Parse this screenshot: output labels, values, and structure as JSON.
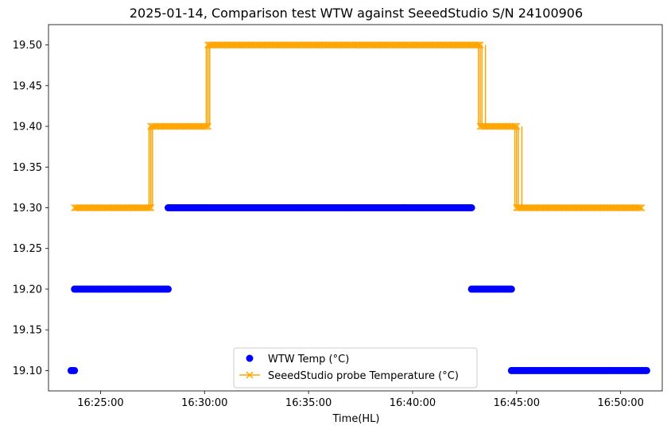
{
  "chart_data": {
    "type": "scatter",
    "title": "2025-01-14, Comparison test WTW against SeeedStudio S/N 24100906",
    "xlabel": "Time(HL)",
    "ylabel": "",
    "x_is_time": true,
    "xlim": [
      "16:22:30",
      "16:52:00"
    ],
    "ylim": [
      19.075,
      19.525
    ],
    "y_ticks": [
      "19.10",
      "19.15",
      "19.20",
      "19.25",
      "19.30",
      "19.35",
      "19.40",
      "19.45",
      "19.50"
    ],
    "x_ticks": [
      "16:25:00",
      "16:30:00",
      "16:35:00",
      "16:40:00",
      "16:45:00",
      "16:50:00"
    ],
    "grid": false,
    "legend_position": "lower-center",
    "series": [
      {
        "name": "WTW Temp (°C)",
        "kind": "scatter",
        "marker": "circle",
        "color": "#0000ff",
        "segments": [
          {
            "x_start": "16:23:35",
            "x_end": "16:23:45",
            "y": 19.1
          },
          {
            "x_start": "16:23:45",
            "x_end": "16:28:15",
            "y": 19.2
          },
          {
            "x_start": "16:28:15",
            "x_end": "16:42:50",
            "y": 19.3
          },
          {
            "x_start": "16:42:50",
            "x_end": "16:44:45",
            "y": 19.2
          },
          {
            "x_start": "16:44:45",
            "x_end": "16:51:15",
            "y": 19.1
          }
        ]
      },
      {
        "name": "SeeedStudio probe Temperature (°C)",
        "kind": "line",
        "marker": "x",
        "color": "#ffa500",
        "segments": [
          {
            "x_start": "16:23:45",
            "x_end": "16:27:25",
            "y": 19.3
          },
          {
            "x_start": "16:27:25",
            "x_end": "16:30:10",
            "y": 19.4
          },
          {
            "x_start": "16:30:10",
            "x_end": "16:43:15",
            "y": 19.5
          },
          {
            "x_start": "16:43:15",
            "x_end": "16:45:00",
            "y": 19.4
          },
          {
            "x_start": "16:45:00",
            "x_end": "16:51:00",
            "y": 19.3
          }
        ],
        "flicker_transitions": [
          {
            "times": [
              "16:27:20",
              "16:27:25",
              "16:27:30"
            ],
            "low": 19.3,
            "high": 19.4
          },
          {
            "times": [
              "16:30:05",
              "16:30:10",
              "16:30:15"
            ],
            "low": 19.4,
            "high": 19.5
          },
          {
            "times": [
              "16:43:10",
              "16:43:20",
              "16:43:30"
            ],
            "low": 19.4,
            "high": 19.5
          },
          {
            "times": [
              "16:44:55",
              "16:45:05",
              "16:45:15"
            ],
            "low": 19.3,
            "high": 19.4
          }
        ]
      }
    ]
  }
}
